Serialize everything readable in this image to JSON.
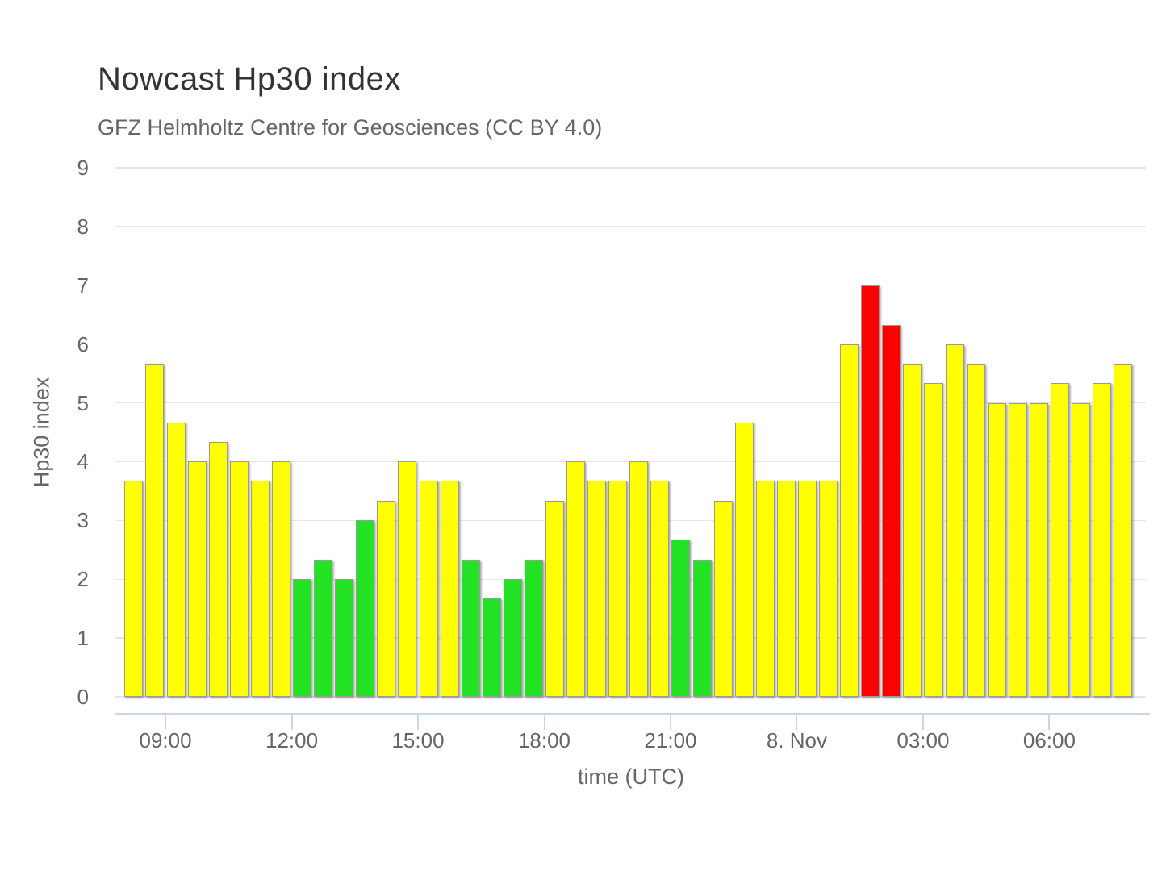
{
  "title": "Nowcast Hp30 index",
  "subtitle": "GFZ Helmholtz Centre for Geosciences (CC BY 4.0)",
  "y_axis": {
    "title": "Hp30 index",
    "tick_labels": [
      "0",
      "1",
      "2",
      "3",
      "4",
      "5",
      "6",
      "7",
      "8",
      "9"
    ]
  },
  "x_axis": {
    "title": "time (UTC)",
    "tick_labels": [
      "09:00",
      "12:00",
      "15:00",
      "18:00",
      "21:00",
      "8. Nov",
      "03:00",
      "06:00"
    ]
  },
  "colors": {
    "quiet": "#23e123",
    "active": "#ffff00",
    "storm": "#ff0000",
    "gridline": "#e6e6e6",
    "axis_line": "#ccd6eb",
    "title_text": "#333333",
    "secondary_text": "#666666"
  },
  "chart_data": {
    "type": "bar",
    "title": "Nowcast Hp30 index",
    "subtitle": "GFZ Helmholtz Centre for Geosciences (CC BY 4.0)",
    "xlabel": "time (UTC)",
    "ylabel": "Hp30 index",
    "ylim": [
      0,
      9
    ],
    "grid": true,
    "legend": false,
    "bar_interval_minutes": 30,
    "day_boundary_label": "8. Nov",
    "x_times": [
      "08:00",
      "08:30",
      "09:00",
      "09:30",
      "10:00",
      "10:30",
      "11:00",
      "11:30",
      "12:00",
      "12:30",
      "13:00",
      "13:30",
      "14:00",
      "14:30",
      "15:00",
      "15:30",
      "16:00",
      "16:30",
      "17:00",
      "17:30",
      "18:00",
      "18:30",
      "19:00",
      "19:30",
      "20:00",
      "20:30",
      "21:00",
      "21:30",
      "22:00",
      "22:30",
      "23:00",
      "23:30",
      "00:00",
      "00:30",
      "01:00",
      "01:30",
      "02:00",
      "02:30",
      "03:00",
      "03:30",
      "04:00",
      "04:30",
      "05:00",
      "05:30",
      "06:00",
      "06:30",
      "07:00",
      "07:30"
    ],
    "values": [
      3.67,
      5.67,
      4.67,
      4,
      4.33,
      4,
      3.67,
      4,
      2,
      2.33,
      2,
      3,
      3.33,
      4,
      3.67,
      3.67,
      2.33,
      1.67,
      2,
      2.33,
      3.33,
      4,
      3.67,
      3.67,
      4,
      3.67,
      2.67,
      2.33,
      3.33,
      4.67,
      3.67,
      3.67,
      3.67,
      3.67,
      6,
      7,
      6.33,
      5.67,
      5.33,
      6,
      5.67,
      5,
      5,
      5,
      5.33,
      5,
      5.33,
      5.67
    ],
    "levels": [
      "active",
      "active",
      "active",
      "active",
      "active",
      "active",
      "active",
      "active",
      "quiet",
      "quiet",
      "quiet",
      "quiet",
      "active",
      "active",
      "active",
      "active",
      "quiet",
      "quiet",
      "quiet",
      "quiet",
      "active",
      "active",
      "active",
      "active",
      "active",
      "active",
      "quiet",
      "quiet",
      "active",
      "active",
      "active",
      "active",
      "active",
      "active",
      "active",
      "storm",
      "storm",
      "active",
      "active",
      "active",
      "active",
      "active",
      "active",
      "active",
      "active",
      "active",
      "active",
      "active"
    ]
  }
}
